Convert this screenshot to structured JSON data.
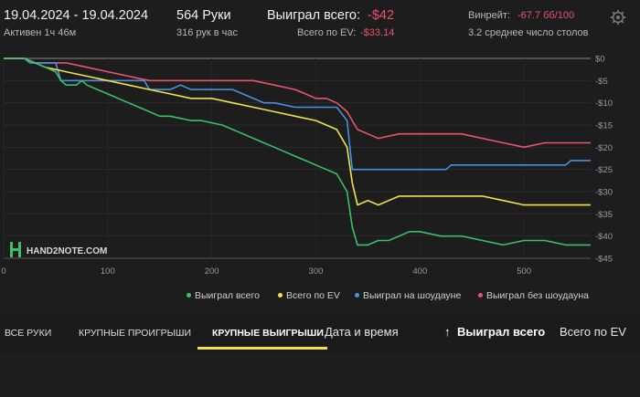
{
  "header": {
    "date_range": "19.04.2024 - 19.04.2024",
    "active": "Активен 1ч 46м",
    "hands": "564 Руки",
    "hands_per_hour": "316 рук в час",
    "won_label": "Выиграл всего:",
    "won_value": "-$42",
    "ev_label": "Всего по EV:",
    "ev_value": "-$33.14",
    "winrate_label": "Винрейт:",
    "winrate_value": "-67.7 бб/100",
    "tables": "3.2 среднее число столов"
  },
  "brand": "HAND2NOTE.COM",
  "chart_data": {
    "type": "line",
    "xlim": [
      0,
      564
    ],
    "ylim": [
      -45,
      0
    ],
    "x_ticks": [
      "0",
      "100",
      "200",
      "300",
      "400",
      "500"
    ],
    "y_ticks": [
      "$0",
      "-$5",
      "-$10",
      "-$15",
      "-$20",
      "-$25",
      "-$30",
      "-$35",
      "-$40",
      "-$45"
    ],
    "y_tick_values": [
      0,
      -5,
      -10,
      -15,
      -20,
      -25,
      -30,
      -35,
      -40,
      -45
    ],
    "x_tick_values": [
      0,
      100,
      200,
      300,
      400,
      500
    ],
    "series": [
      {
        "name": "Выиграл всего",
        "color": "#3ac06a",
        "x": [
          0,
          20,
          40,
          50,
          55,
          60,
          70,
          75,
          80,
          90,
          100,
          110,
          120,
          130,
          140,
          150,
          160,
          170,
          180,
          190,
          200,
          210,
          220,
          230,
          240,
          250,
          260,
          270,
          280,
          290,
          300,
          310,
          320,
          330,
          335,
          340,
          350,
          360,
          370,
          380,
          390,
          400,
          420,
          440,
          460,
          480,
          500,
          520,
          540,
          564
        ],
        "y": [
          0,
          0,
          -2,
          -3,
          -5,
          -6,
          -6,
          -5,
          -6,
          -7,
          -8,
          -9,
          -10,
          -11,
          -12,
          -13,
          -13,
          -13.5,
          -14,
          -14,
          -14.5,
          -15,
          -16,
          -17,
          -18,
          -19,
          -20,
          -21,
          -22,
          -23,
          -24,
          -25,
          -26,
          -30,
          -38,
          -42,
          -42,
          -41,
          -41,
          -40,
          -39,
          -39,
          -40,
          -40,
          -41,
          -42,
          -41,
          -41,
          -42,
          -42
        ]
      },
      {
        "name": "Всего по EV",
        "color": "#f0e34a",
        "x": [
          0,
          20,
          40,
          60,
          80,
          100,
          120,
          140,
          160,
          180,
          200,
          220,
          240,
          260,
          280,
          300,
          320,
          330,
          335,
          340,
          350,
          360,
          370,
          380,
          390,
          400,
          420,
          440,
          460,
          480,
          500,
          520,
          540,
          564
        ],
        "y": [
          0,
          0,
          -2,
          -3,
          -4,
          -5,
          -6,
          -7,
          -8,
          -9,
          -9,
          -10,
          -11,
          -12,
          -13,
          -14,
          -16,
          -20,
          -28,
          -33,
          -32,
          -33,
          -32,
          -31,
          -31,
          -31,
          -31,
          -31,
          -31,
          -32,
          -33,
          -33,
          -33,
          -33
        ]
      },
      {
        "name": "Выиграл на шоудауне",
        "color": "#4a90e0",
        "x": [
          0,
          20,
          25,
          30,
          50,
          55,
          60,
          80,
          120,
          135,
          140,
          150,
          160,
          170,
          180,
          190,
          220,
          250,
          260,
          280,
          300,
          320,
          330,
          335,
          340,
          380,
          400,
          425,
          430,
          440,
          460,
          480,
          500,
          540,
          545,
          564
        ],
        "y": [
          0,
          0,
          -1,
          -1,
          -1,
          -5,
          -5,
          -5,
          -5,
          -5,
          -7,
          -7,
          -7,
          -6,
          -7,
          -7,
          -7,
          -10,
          -10,
          -11,
          -11,
          -11,
          -14,
          -25,
          -25,
          -25,
          -25,
          -25,
          -24,
          -24,
          -24,
          -24,
          -24,
          -24,
          -23,
          -23
        ]
      },
      {
        "name": "Выиграл без шоудауна",
        "color": "#e8556d",
        "x": [
          0,
          20,
          30,
          40,
          60,
          80,
          100,
          120,
          140,
          160,
          180,
          200,
          220,
          240,
          260,
          280,
          290,
          300,
          310,
          320,
          330,
          340,
          350,
          360,
          380,
          400,
          420,
          440,
          460,
          480,
          500,
          520,
          540,
          564
        ],
        "y": [
          0,
          0,
          -1,
          -1,
          -1,
          -2,
          -3,
          -4,
          -5,
          -5,
          -5,
          -5,
          -5,
          -5,
          -6,
          -7,
          -8,
          -9,
          -9,
          -10,
          -12,
          -16,
          -17,
          -18,
          -17,
          -17,
          -17,
          -17,
          -18,
          -19,
          -20,
          -19,
          -19,
          -19
        ]
      }
    ]
  },
  "tabs": {
    "all_hands": "ВСЕ РУКИ",
    "big_losses": "КРУПНЫЕ ПРОИГРЫШИ",
    "big_wins": "КРУПНЫЕ ВЫИГРЫШИ",
    "date_time": "Дата и время",
    "sort_arrow": "↑",
    "won_total": "Выиграл всего",
    "ev_total": "Всего по EV"
  },
  "colors": {
    "background": "#1d1d1d",
    "accent": "#f0e34a",
    "negative": "#e8556d"
  }
}
